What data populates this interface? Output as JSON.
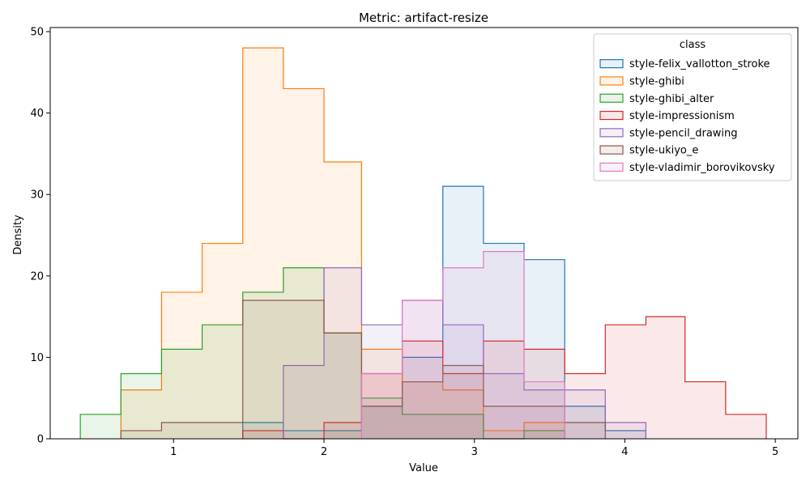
{
  "chart_data": {
    "type": "histogram",
    "title": "Metric: artifact-resize",
    "xlabel": "Value",
    "ylabel": "Density",
    "xlim": [
      0.18,
      5.15
    ],
    "ylim": [
      0,
      50.5
    ],
    "xticks": [
      1,
      2,
      3,
      4,
      5
    ],
    "yticks": [
      0,
      10,
      20,
      30,
      40,
      50
    ],
    "grid": false,
    "legend": {
      "title": "class",
      "placement": "top-right"
    },
    "bin_edges": [
      0.38,
      0.65,
      0.92,
      1.19,
      1.46,
      1.73,
      2.0,
      2.25,
      2.52,
      2.79,
      3.06,
      3.33,
      3.6,
      3.87,
      4.14,
      4.4,
      4.67,
      4.94
    ],
    "series": [
      {
        "name": "style-felix_vallotton_stroke",
        "color": "#1f77b4",
        "values": [
          0,
          0,
          0,
          0,
          2,
          1,
          1,
          4,
          10,
          31,
          24,
          22,
          4,
          1,
          0,
          0,
          0
        ]
      },
      {
        "name": "style-ghibi",
        "color": "#ff7f0e",
        "values": [
          0,
          6,
          18,
          24,
          48,
          43,
          34,
          11,
          7,
          6,
          1,
          2,
          0,
          0,
          0,
          0,
          0
        ]
      },
      {
        "name": "style-ghibi_alter",
        "color": "#2ca02c",
        "values": [
          3,
          8,
          11,
          14,
          18,
          21,
          13,
          5,
          3,
          3,
          0,
          1,
          0,
          0,
          0,
          0,
          0
        ]
      },
      {
        "name": "style-impressionism",
        "color": "#d62728",
        "values": [
          0,
          0,
          0,
          0,
          1,
          0,
          2,
          8,
          12,
          8,
          12,
          11,
          8,
          14,
          15,
          7,
          3
        ]
      },
      {
        "name": "style-pencil_drawing",
        "color": "#9467bd",
        "values": [
          0,
          0,
          0,
          0,
          0,
          9,
          21,
          14,
          17,
          14,
          8,
          6,
          6,
          2,
          0,
          0,
          0
        ]
      },
      {
        "name": "style-ukiyo_e",
        "color": "#8c564b",
        "values": [
          0,
          1,
          2,
          2,
          17,
          17,
          13,
          4,
          7,
          9,
          4,
          4,
          2,
          0,
          0,
          0,
          0
        ]
      },
      {
        "name": "style-vladimir_borovikovsky",
        "color": "#e377c2",
        "values": [
          0,
          0,
          0,
          0,
          0,
          0,
          0,
          8,
          17,
          21,
          23,
          7,
          0,
          0,
          0,
          0,
          0
        ]
      }
    ]
  }
}
